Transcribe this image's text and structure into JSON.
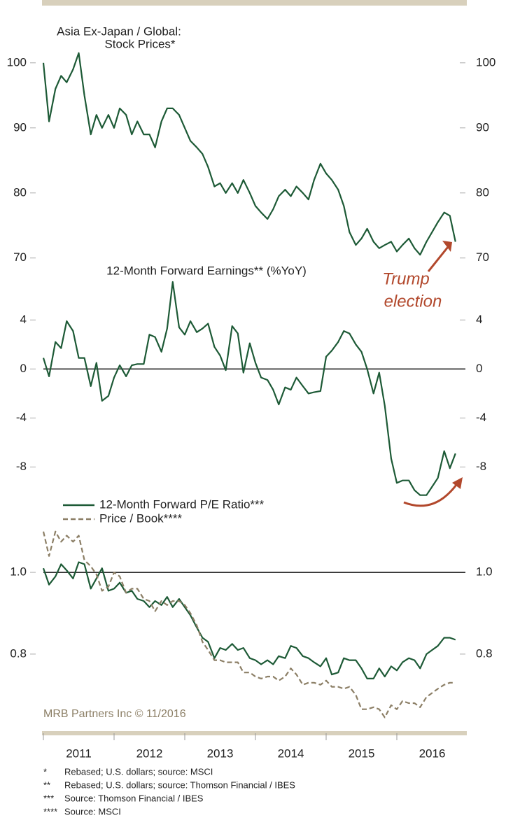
{
  "chart_data": [
    {
      "type": "line",
      "title": [
        "Asia Ex-Japan / Global:",
        "Stock Prices*"
      ],
      "annotation": [
        "Trump",
        "election"
      ],
      "xlim": [
        2011,
        2017
      ],
      "x": [
        2011,
        2011.08,
        2011.17,
        2011.25,
        2011.33,
        2011.42,
        2011.5,
        2011.58,
        2011.67,
        2011.75,
        2011.83,
        2011.92,
        2012,
        2012.08,
        2012.17,
        2012.25,
        2012.33,
        2012.42,
        2012.5,
        2012.58,
        2012.67,
        2012.75,
        2012.83,
        2012.92,
        2013,
        2013.08,
        2013.17,
        2013.25,
        2013.33,
        2013.42,
        2013.5,
        2013.58,
        2013.67,
        2013.75,
        2013.83,
        2013.92,
        2014,
        2014.08,
        2014.17,
        2014.25,
        2014.33,
        2014.42,
        2014.5,
        2014.58,
        2014.67,
        2014.75,
        2014.83,
        2014.92,
        2015,
        2015.08,
        2015.17,
        2015.25,
        2015.33,
        2015.42,
        2015.5,
        2015.58,
        2015.67,
        2015.75,
        2015.83,
        2015.92,
        2016,
        2016.08,
        2016.17,
        2016.25,
        2016.33,
        2016.42,
        2016.5,
        2016.58,
        2016.67,
        2016.75,
        2016.83
      ],
      "ylim": [
        67.5,
        106
      ],
      "yticks": [
        70,
        80,
        90,
        100
      ],
      "series": [
        {
          "color": "#1d5a36",
          "values": [
            100,
            91,
            96,
            98,
            97,
            99,
            101.5,
            95,
            89,
            92,
            90,
            92,
            90,
            93,
            92,
            89,
            91,
            89,
            89,
            87,
            91,
            93,
            93,
            92,
            90,
            88,
            87,
            86,
            84,
            81,
            81.5,
            80,
            81.5,
            80,
            82,
            80,
            78,
            77,
            76,
            77.5,
            79.5,
            80.5,
            79.5,
            81,
            80,
            79,
            82,
            84.5,
            83,
            82,
            80.5,
            78,
            74,
            72,
            73,
            74.5,
            72.5,
            71.5,
            72,
            72.5,
            71,
            72,
            73,
            71.5,
            70.5,
            72.5,
            74,
            75.5,
            77,
            76.5,
            72.5
          ]
        }
      ]
    },
    {
      "type": "line",
      "title": "12-Month Forward Earnings** (%YoY)",
      "xlim": [
        2011,
        2017
      ],
      "x": [
        2011,
        2011.08,
        2011.17,
        2011.25,
        2011.33,
        2011.42,
        2011.5,
        2011.58,
        2011.67,
        2011.75,
        2011.83,
        2011.92,
        2012,
        2012.08,
        2012.17,
        2012.25,
        2012.33,
        2012.42,
        2012.5,
        2012.58,
        2012.67,
        2012.75,
        2012.83,
        2012.92,
        2013,
        2013.08,
        2013.17,
        2013.25,
        2013.33,
        2013.42,
        2013.5,
        2013.58,
        2013.67,
        2013.75,
        2013.83,
        2013.92,
        2014,
        2014.08,
        2014.17,
        2014.25,
        2014.33,
        2014.42,
        2014.5,
        2014.58,
        2014.67,
        2014.75,
        2014.83,
        2014.92,
        2015,
        2015.08,
        2015.17,
        2015.25,
        2015.33,
        2015.42,
        2015.5,
        2015.58,
        2015.67,
        2015.75,
        2015.83,
        2015.92,
        2016,
        2016.08,
        2016.17,
        2016.25,
        2016.33,
        2016.42,
        2016.5,
        2016.58,
        2016.67,
        2016.75,
        2016.83
      ],
      "ylim": [
        -11,
        7.5
      ],
      "yticks": [
        -8,
        -4,
        0,
        4
      ],
      "reference_line": 0,
      "series": [
        {
          "color": "#1d5a36",
          "values": [
            0.9,
            -0.6,
            2.2,
            1.7,
            3.9,
            3.1,
            0.9,
            0.9,
            -1.4,
            0.5,
            -2.6,
            -2.2,
            -0.7,
            0.3,
            -0.6,
            0.3,
            0.4,
            0.4,
            2.8,
            2.6,
            1.4,
            3.3,
            7.1,
            3.4,
            2.8,
            3.9,
            3.0,
            3.3,
            3.7,
            1.8,
            1.1,
            -0.1,
            3.5,
            2.9,
            -0.3,
            2.1,
            0.5,
            -0.7,
            -0.9,
            -1.7,
            -2.9,
            -1.5,
            -1.7,
            -0.7,
            -1.4,
            -2.0,
            -1.9,
            -1.8,
            1.0,
            1.5,
            2.2,
            3.1,
            2.9,
            2.0,
            1.4,
            0,
            -2.0,
            -0.3,
            -3.0,
            -7.3,
            -9.3,
            -9.1,
            -9.1,
            -9.9,
            -10.3,
            -10.3,
            -9.6,
            -8.9,
            -6.7,
            -8.1,
            -6.9
          ]
        }
      ]
    },
    {
      "type": "line",
      "source": "MRB Partners Inc © 11/2016",
      "xlim": [
        2011,
        2017
      ],
      "xticks": [
        {
          "value": 2011,
          "label": "2011"
        },
        {
          "value": 2012,
          "label": "2012"
        },
        {
          "value": 2013,
          "label": "2013"
        },
        {
          "value": 2014,
          "label": "2014"
        },
        {
          "value": 2015,
          "label": "2015"
        },
        {
          "value": 2016,
          "label": "2016"
        }
      ],
      "x": [
        2011,
        2011.08,
        2011.17,
        2011.25,
        2011.33,
        2011.42,
        2011.5,
        2011.58,
        2011.67,
        2011.75,
        2011.83,
        2011.92,
        2012,
        2012.08,
        2012.17,
        2012.25,
        2012.33,
        2012.42,
        2012.5,
        2012.58,
        2012.67,
        2012.75,
        2012.83,
        2012.92,
        2013,
        2013.08,
        2013.17,
        2013.25,
        2013.33,
        2013.42,
        2013.5,
        2013.58,
        2013.67,
        2013.75,
        2013.83,
        2013.92,
        2014,
        2014.08,
        2014.17,
        2014.25,
        2014.33,
        2014.42,
        2014.5,
        2014.58,
        2014.67,
        2014.75,
        2014.83,
        2014.92,
        2015,
        2015.08,
        2015.17,
        2015.25,
        2015.33,
        2015.42,
        2015.5,
        2015.58,
        2015.67,
        2015.75,
        2015.83,
        2015.92,
        2016,
        2016.08,
        2016.17,
        2016.25,
        2016.33,
        2016.42,
        2016.5,
        2016.58,
        2016.67,
        2016.75,
        2016.83
      ],
      "ylim": [
        0.62,
        1.12
      ],
      "yticks": [
        0.8,
        {
          "value": 1,
          "label": "1.0"
        }
      ],
      "reference_line": 1,
      "series": [
        {
          "name": "12-Month Forward P/E Ratio***",
          "color": "#1d5a36",
          "dash": false,
          "values": [
            1.01,
            0.97,
            0.99,
            1.02,
            1.005,
            0.985,
            1.025,
            1.02,
            0.96,
            0.985,
            1.01,
            0.955,
            0.96,
            0.975,
            0.95,
            0.955,
            0.935,
            0.93,
            0.915,
            0.93,
            0.92,
            0.94,
            0.915,
            0.935,
            0.915,
            0.895,
            0.865,
            0.84,
            0.83,
            0.79,
            0.815,
            0.81,
            0.825,
            0.81,
            0.815,
            0.79,
            0.785,
            0.775,
            0.785,
            0.775,
            0.795,
            0.79,
            0.82,
            0.815,
            0.795,
            0.79,
            0.78,
            0.77,
            0.79,
            0.75,
            0.755,
            0.79,
            0.785,
            0.785,
            0.765,
            0.74,
            0.74,
            0.765,
            0.745,
            0.77,
            0.76,
            0.78,
            0.79,
            0.785,
            0.765,
            0.8,
            0.81,
            0.82,
            0.84,
            0.84,
            0.835
          ]
        },
        {
          "name": "Price / Book****",
          "color": "#8c7f66",
          "dash": true,
          "values": [
            1.1,
            1.04,
            1.1,
            1.075,
            1.09,
            1.075,
            1.09,
            1.03,
            1.015,
            0.995,
            0.955,
            0.965,
            1.0,
            0.99,
            0.95,
            0.96,
            0.96,
            0.935,
            0.93,
            0.905,
            0.93,
            0.92,
            0.93,
            0.93,
            0.92,
            0.9,
            0.87,
            0.83,
            0.81,
            0.785,
            0.785,
            0.78,
            0.78,
            0.78,
            0.755,
            0.755,
            0.745,
            0.74,
            0.745,
            0.745,
            0.735,
            0.745,
            0.765,
            0.75,
            0.725,
            0.73,
            0.73,
            0.725,
            0.735,
            0.72,
            0.72,
            0.715,
            0.72,
            0.7,
            0.665,
            0.665,
            0.67,
            0.665,
            0.645,
            0.675,
            0.665,
            0.685,
            0.68,
            0.68,
            0.67,
            0.695,
            0.705,
            0.715,
            0.725,
            0.73,
            0.73
          ]
        }
      ]
    }
  ],
  "footnotes": [
    {
      "mark": "*",
      "text": "Rebased; U.S. dollars; source: MSCI"
    },
    {
      "mark": "**",
      "text": "Rebased; U.S. dollars; source: Thomson Financial / IBES"
    },
    {
      "mark": "***",
      "text": "Source: Thomson Financial / IBES"
    },
    {
      "mark": "****",
      "text": "Source: MSCI"
    }
  ]
}
